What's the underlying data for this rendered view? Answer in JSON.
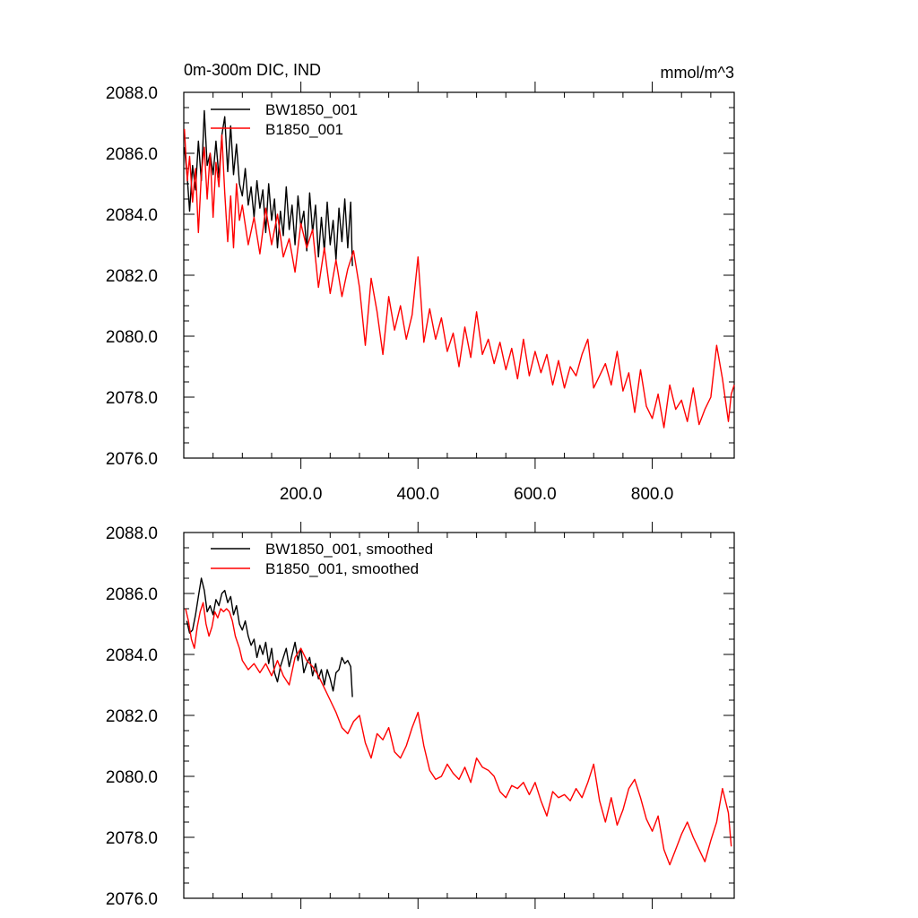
{
  "chart_data": [
    {
      "type": "line",
      "title_left": "0m-300m DIC, IND",
      "title_right": "mmol/m^3",
      "xlabel": "",
      "ylabel": "",
      "xlim": [
        0,
        940
      ],
      "ylim": [
        2076.0,
        2088.0
      ],
      "x_ticks": [
        200,
        400,
        600,
        800
      ],
      "x_tick_labels": [
        "200.0",
        "400.0",
        "600.0",
        "800.0"
      ],
      "y_ticks": [
        2076,
        2078,
        2080,
        2082,
        2084,
        2086,
        2088
      ],
      "y_tick_labels": [
        "2076.0",
        "2078.0",
        "2080.0",
        "2082.0",
        "2084.0",
        "2086.0",
        "2088.0"
      ],
      "legend_position": "top-left",
      "series": [
        {
          "name": "BW1850_001",
          "color": "#000000",
          "x": [
            1,
            6,
            10,
            15,
            20,
            25,
            30,
            35,
            40,
            45,
            50,
            55,
            60,
            65,
            70,
            75,
            80,
            85,
            90,
            95,
            100,
            105,
            110,
            115,
            120,
            125,
            130,
            135,
            140,
            145,
            150,
            155,
            160,
            165,
            170,
            175,
            180,
            185,
            190,
            195,
            200,
            205,
            210,
            215,
            220,
            225,
            230,
            235,
            240,
            245,
            250,
            255,
            260,
            265,
            270,
            275,
            280,
            285,
            288
          ],
          "y": [
            2086.2,
            2085.2,
            2084.1,
            2085.6,
            2084.8,
            2086.4,
            2085.1,
            2087.4,
            2085.6,
            2086.0,
            2085.3,
            2086.4,
            2085.2,
            2086.6,
            2087.2,
            2085.4,
            2086.9,
            2085.3,
            2086.3,
            2085.0,
            2084.6,
            2085.5,
            2084.3,
            2084.9,
            2083.9,
            2085.1,
            2084.2,
            2084.8,
            2083.4,
            2085.0,
            2083.8,
            2084.5,
            2082.9,
            2084.1,
            2083.3,
            2084.9,
            2083.5,
            2084.3,
            2083.0,
            2084.6,
            2083.6,
            2084.1,
            2082.8,
            2084.7,
            2083.4,
            2084.3,
            2082.6,
            2083.9,
            2082.8,
            2084.4,
            2083.0,
            2083.8,
            2082.5,
            2084.2,
            2083.1,
            2084.5,
            2082.9,
            2084.4,
            2082.3
          ]
        },
        {
          "name": "B1850_001",
          "color": "#ff0000",
          "x": [
            1,
            6,
            10,
            15,
            20,
            25,
            30,
            35,
            40,
            45,
            50,
            55,
            60,
            65,
            70,
            75,
            80,
            85,
            90,
            95,
            100,
            110,
            120,
            130,
            140,
            150,
            160,
            170,
            180,
            190,
            200,
            210,
            220,
            230,
            240,
            250,
            260,
            270,
            280,
            290,
            300,
            310,
            320,
            330,
            340,
            350,
            360,
            370,
            380,
            390,
            400,
            410,
            420,
            430,
            440,
            450,
            460,
            470,
            480,
            490,
            500,
            510,
            520,
            530,
            540,
            550,
            560,
            570,
            580,
            590,
            600,
            610,
            620,
            630,
            640,
            650,
            660,
            670,
            680,
            690,
            700,
            710,
            720,
            730,
            740,
            750,
            760,
            770,
            780,
            790,
            800,
            810,
            820,
            830,
            840,
            850,
            860,
            870,
            880,
            890,
            900,
            910,
            920,
            930,
            935,
            940
          ],
          "y": [
            2086.8,
            2085.1,
            2085.9,
            2084.4,
            2085.5,
            2083.4,
            2085.3,
            2086.2,
            2084.5,
            2086.0,
            2083.9,
            2085.7,
            2084.9,
            2086.6,
            2084.7,
            2083.1,
            2084.6,
            2082.9,
            2085.0,
            2083.8,
            2084.3,
            2083.0,
            2083.9,
            2082.7,
            2084.2,
            2083.0,
            2084.0,
            2082.6,
            2083.2,
            2082.1,
            2083.7,
            2082.9,
            2083.5,
            2081.6,
            2082.9,
            2081.4,
            2082.5,
            2081.3,
            2082.2,
            2082.8,
            2081.6,
            2079.7,
            2081.9,
            2080.8,
            2079.4,
            2081.3,
            2080.2,
            2081.0,
            2079.9,
            2080.7,
            2082.6,
            2079.8,
            2080.9,
            2079.9,
            2080.6,
            2079.5,
            2080.1,
            2079.0,
            2080.3,
            2079.3,
            2080.8,
            2079.4,
            2079.9,
            2079.1,
            2079.8,
            2078.9,
            2079.6,
            2078.6,
            2079.9,
            2078.7,
            2079.5,
            2078.8,
            2079.4,
            2078.4,
            2079.2,
            2078.3,
            2079.0,
            2078.7,
            2079.4,
            2079.9,
            2078.3,
            2078.7,
            2079.1,
            2078.4,
            2079.5,
            2078.2,
            2078.8,
            2077.5,
            2078.9,
            2077.7,
            2077.3,
            2078.1,
            2077.0,
            2078.4,
            2077.6,
            2077.9,
            2077.2,
            2078.3,
            2077.1,
            2077.6,
            2078.0,
            2079.7,
            2078.6,
            2077.2,
            2078.1,
            2078.4
          ]
        }
      ]
    },
    {
      "type": "line",
      "title_left": "",
      "title_right": "",
      "xlabel": "",
      "ylabel": "",
      "xlim": [
        0,
        940
      ],
      "ylim": [
        2076.0,
        2088.0
      ],
      "x_ticks": [
        200,
        400,
        600,
        800
      ],
      "x_tick_labels": [],
      "y_ticks": [
        2076,
        2078,
        2080,
        2082,
        2084,
        2086,
        2088
      ],
      "y_tick_labels": [
        "2076.0",
        "2078.0",
        "2080.0",
        "2082.0",
        "2084.0",
        "2086.0",
        "2088.0"
      ],
      "legend_position": "top-left",
      "series": [
        {
          "name": "BW1850_001, smoothed",
          "color": "#000000",
          "x": [
            5,
            10,
            15,
            20,
            25,
            30,
            35,
            40,
            45,
            50,
            55,
            60,
            65,
            70,
            75,
            80,
            85,
            90,
            95,
            100,
            105,
            110,
            115,
            120,
            125,
            130,
            135,
            140,
            145,
            150,
            155,
            160,
            165,
            170,
            175,
            180,
            185,
            190,
            195,
            200,
            205,
            210,
            215,
            220,
            225,
            230,
            235,
            240,
            245,
            250,
            255,
            260,
            265,
            270,
            275,
            280,
            285,
            288
          ],
          "y": [
            2085.1,
            2084.7,
            2084.8,
            2085.3,
            2085.9,
            2086.5,
            2086.1,
            2085.4,
            2085.6,
            2085.3,
            2085.8,
            2085.6,
            2086.0,
            2086.1,
            2085.7,
            2085.9,
            2085.3,
            2085.6,
            2085.0,
            2084.8,
            2085.1,
            2084.6,
            2084.3,
            2084.5,
            2083.9,
            2084.3,
            2084.0,
            2084.4,
            2083.7,
            2084.2,
            2083.4,
            2083.1,
            2083.6,
            2083.9,
            2084.2,
            2083.6,
            2084.0,
            2084.4,
            2083.8,
            2084.2,
            2083.4,
            2083.7,
            2083.9,
            2083.3,
            2083.7,
            2083.2,
            2083.5,
            2083.0,
            2083.5,
            2083.2,
            2082.8,
            2083.4,
            2083.5,
            2083.9,
            2083.7,
            2083.8,
            2083.6,
            2082.6
          ]
        },
        {
          "name": "B1850_001, smoothed",
          "color": "#ff0000",
          "x": [
            3,
            8,
            13,
            18,
            23,
            28,
            33,
            38,
            43,
            48,
            53,
            58,
            63,
            68,
            73,
            78,
            83,
            88,
            95,
            100,
            110,
            120,
            130,
            140,
            150,
            160,
            170,
            180,
            190,
            200,
            210,
            220,
            230,
            240,
            250,
            260,
            270,
            280,
            290,
            300,
            310,
            320,
            330,
            340,
            350,
            360,
            370,
            380,
            390,
            400,
            410,
            420,
            430,
            440,
            450,
            460,
            470,
            480,
            490,
            500,
            510,
            520,
            530,
            540,
            550,
            560,
            570,
            580,
            590,
            600,
            610,
            620,
            630,
            640,
            650,
            660,
            670,
            680,
            690,
            700,
            710,
            720,
            730,
            740,
            750,
            760,
            770,
            780,
            790,
            800,
            810,
            820,
            830,
            840,
            850,
            860,
            870,
            880,
            890,
            900,
            910,
            920,
            930,
            935
          ],
          "y": [
            2085.5,
            2085.1,
            2084.5,
            2084.2,
            2084.9,
            2085.4,
            2085.7,
            2085.0,
            2084.6,
            2084.9,
            2085.4,
            2085.2,
            2085.5,
            2085.4,
            2085.5,
            2085.4,
            2085.1,
            2084.6,
            2084.2,
            2083.8,
            2083.5,
            2083.7,
            2083.4,
            2083.7,
            2083.3,
            2083.8,
            2083.3,
            2083.0,
            2083.9,
            2084.2,
            2083.8,
            2083.6,
            2083.3,
            2082.9,
            2082.5,
            2082.1,
            2081.6,
            2081.4,
            2081.8,
            2082.0,
            2081.1,
            2080.6,
            2081.4,
            2081.2,
            2081.6,
            2080.8,
            2080.6,
            2081.0,
            2081.6,
            2082.1,
            2081.0,
            2080.2,
            2079.9,
            2080.0,
            2080.4,
            2080.1,
            2079.9,
            2080.3,
            2079.8,
            2080.6,
            2080.3,
            2080.2,
            2080.0,
            2079.5,
            2079.3,
            2079.7,
            2079.6,
            2079.8,
            2079.4,
            2079.8,
            2079.2,
            2078.7,
            2079.5,
            2079.3,
            2079.4,
            2079.2,
            2079.6,
            2079.3,
            2079.8,
            2080.4,
            2079.2,
            2078.5,
            2079.3,
            2078.4,
            2078.9,
            2079.6,
            2079.9,
            2079.3,
            2078.6,
            2078.2,
            2078.7,
            2077.6,
            2077.1,
            2077.6,
            2078.1,
            2078.5,
            2078.0,
            2077.6,
            2077.2,
            2077.9,
            2078.5,
            2079.6,
            2078.8,
            2077.7
          ]
        }
      ]
    }
  ]
}
